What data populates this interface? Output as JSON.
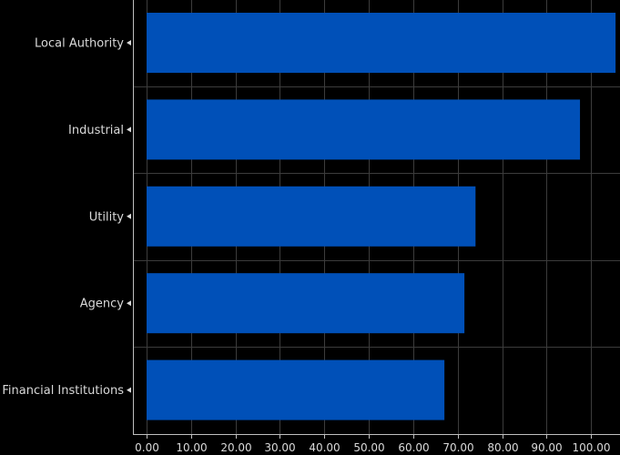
{
  "chart_data": {
    "type": "bar",
    "orientation": "horizontal",
    "categories": [
      "Local Authority",
      "Industrial",
      "Utility",
      "Agency",
      "Financial Institutions"
    ],
    "values": [
      105.5,
      97.5,
      74.0,
      71.5,
      67.0
    ],
    "x_ticks": [
      "0.00",
      "10.00",
      "20.00",
      "30.00",
      "40.00",
      "50.00",
      "60.00",
      "70.00",
      "80.00",
      "90.00",
      "100.00"
    ],
    "xlim": [
      0,
      106.5
    ],
    "grid": true,
    "bar_color": "#0050b8",
    "background": "#000000",
    "text_color": "#d9d9d9"
  }
}
